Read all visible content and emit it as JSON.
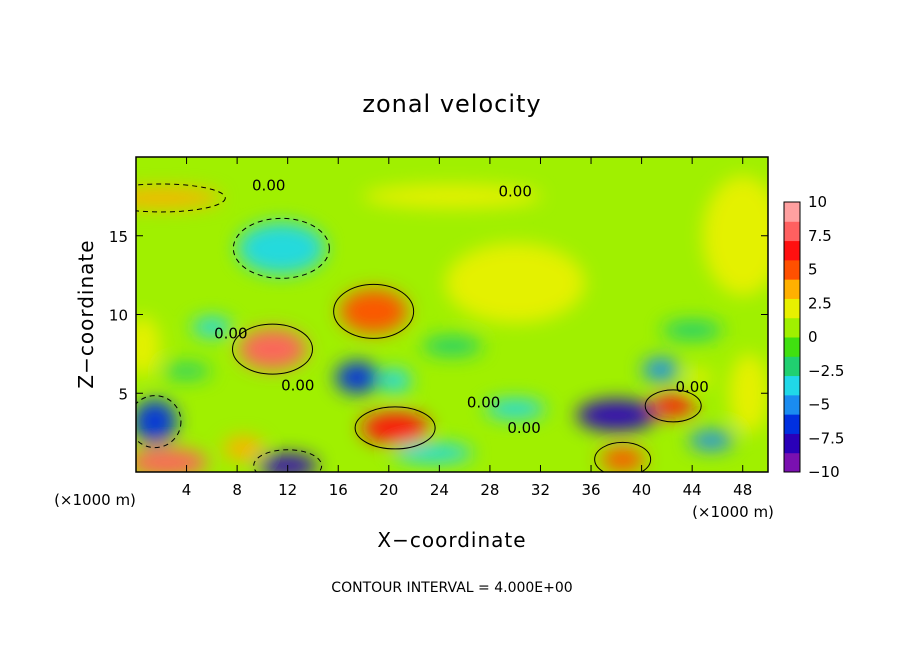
{
  "chart_data": {
    "type": "heatmap",
    "title": "zonal velocity",
    "xlabel": "X−coordinate",
    "ylabel": "Z−coordinate",
    "x_unit": "(×1000 m)",
    "x_unit_right": "(×1000 m)",
    "xlim": [
      0,
      50
    ],
    "ylim": [
      0,
      20
    ],
    "x_ticks": [
      4,
      8,
      12,
      16,
      20,
      24,
      28,
      32,
      36,
      40,
      44,
      48
    ],
    "y_ticks": [
      5,
      10,
      15
    ],
    "x_tick_labels": [
      "4",
      "8",
      "12",
      "16",
      "20",
      "24",
      "28",
      "32",
      "36",
      "40",
      "44",
      "48"
    ],
    "y_tick_labels": [
      "5",
      "10",
      "15"
    ],
    "colorbar": {
      "range": [
        -10,
        10
      ],
      "tick_values": [
        10,
        7.5,
        5,
        2.5,
        0,
        -2.5,
        -5,
        -7.5,
        -10
      ],
      "tick_labels": [
        "10",
        "7.5",
        "5",
        "2.5",
        "0",
        "−2.5",
        "−5",
        "−7.5",
        "−10"
      ],
      "colors": [
        "#7a10b0",
        "#2a00b8",
        "#0030e0",
        "#1a8cf0",
        "#20d8e8",
        "#20d070",
        "#40e010",
        "#a0f000",
        "#e8f000",
        "#ffb000",
        "#ff5000",
        "#ff1010",
        "#ff6060",
        "#ffa0a0"
      ]
    },
    "features": [
      {
        "x": 10.8,
        "z": 7.8,
        "value": 8
      },
      {
        "x": 18.8,
        "z": 10.2,
        "value": 5
      },
      {
        "x": 20.5,
        "z": 2.8,
        "value": 6
      },
      {
        "x": 38.5,
        "z": 0.8,
        "value": 5
      },
      {
        "x": 42.5,
        "z": 4.2,
        "value": 6
      },
      {
        "x": 8.5,
        "z": 1.5,
        "value": 3
      },
      {
        "x": 11.5,
        "z": 14.2,
        "value": -4
      },
      {
        "x": 2,
        "z": 17.4,
        "value": 3.5
      },
      {
        "x": 25,
        "z": 17.5,
        "value": 1.5
      },
      {
        "x": 2.5,
        "z": 0.6,
        "value": 8
      },
      {
        "x": 12,
        "z": 0.4,
        "value": -8
      },
      {
        "x": 1.5,
        "z": 3.2,
        "value": -6
      },
      {
        "x": 17.5,
        "z": 6,
        "value": -7
      },
      {
        "x": 20.5,
        "z": 5.8,
        "value": -4
      },
      {
        "x": 23.5,
        "z": 1.2,
        "value": -4
      },
      {
        "x": 38,
        "z": 3.6,
        "value": -8
      },
      {
        "x": 45.5,
        "z": 2,
        "value": -5
      },
      {
        "x": 41.5,
        "z": 6.5,
        "value": -5
      },
      {
        "x": 44.5,
        "z": 6,
        "value": 2
      },
      {
        "x": 25,
        "z": 8,
        "value": -2
      },
      {
        "x": 30,
        "z": 4,
        "value": -3
      },
      {
        "x": 0.5,
        "z": 8,
        "value": 2
      },
      {
        "x": 48.5,
        "z": 5,
        "value": 2
      },
      {
        "x": 48,
        "z": 15,
        "value": 2
      },
      {
        "x": 30,
        "z": 12,
        "value": 2
      },
      {
        "x": 6,
        "z": 9.2,
        "value": -3
      },
      {
        "x": 4,
        "z": 6.4,
        "value": -2
      },
      {
        "x": 44,
        "z": 9,
        "value": -2
      }
    ],
    "contour_labels": [
      {
        "x": 10.5,
        "z": 18.2,
        "text": "0.00"
      },
      {
        "x": 30,
        "z": 17.8,
        "text": "0.00"
      },
      {
        "x": 7.5,
        "z": 8.8,
        "text": "0.00"
      },
      {
        "x": 12.8,
        "z": 5.5,
        "text": "0.00"
      },
      {
        "x": 27.5,
        "z": 4.4,
        "text": "0.00"
      },
      {
        "x": 30.7,
        "z": 2.8,
        "text": "0.00"
      },
      {
        "x": 44,
        "z": 5.4,
        "text": "0.00"
      }
    ],
    "contour_interval_note": "CONTOUR INTERVAL = 4.000E+00"
  }
}
